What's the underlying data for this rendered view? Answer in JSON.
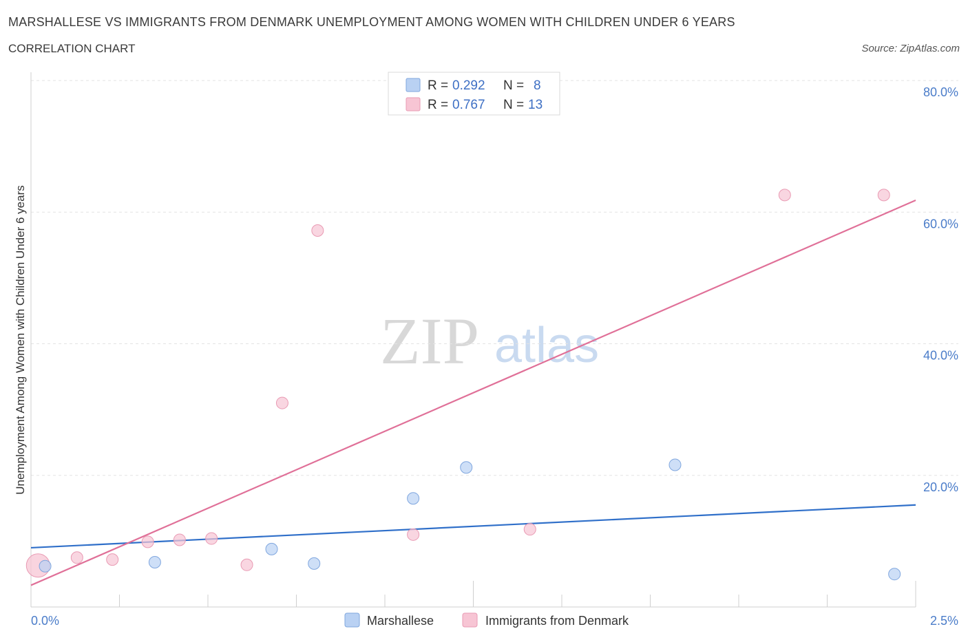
{
  "header": {
    "title": "MARSHALLESE VS IMMIGRANTS FROM DENMARK UNEMPLOYMENT AMONG WOMEN WITH CHILDREN UNDER 6 YEARS",
    "subtitle": "CORRELATION CHART",
    "source": "Source: ZipAtlas.com"
  },
  "watermark": {
    "zip": "ZIP",
    "atlas": "atlas"
  },
  "legend": {
    "series1": {
      "r_label": "R =",
      "r_value": "0.292",
      "n_label": "N =",
      "n_value": "8"
    },
    "series2": {
      "r_label": "R =",
      "r_value": "0.767",
      "n_label": "N =",
      "n_value": "13"
    }
  },
  "chart_data": {
    "type": "scatter",
    "title": "MARSHALLESE VS IMMIGRANTS FROM DENMARK UNEMPLOYMENT AMONG WOMEN WITH CHILDREN UNDER 6 YEARS",
    "xlabel": "",
    "ylabel": "Unemployment Among Women with Children Under 6 years",
    "xlim": [
      0,
      2.5
    ],
    "ylim": [
      0,
      80
    ],
    "x_tick_labels": [
      "0.0%",
      "2.5%"
    ],
    "y_ticks": [
      20,
      40,
      60,
      80
    ],
    "y_tick_labels": [
      "20.0%",
      "40.0%",
      "60.0%",
      "80.0%"
    ],
    "colors": {
      "marshallese_fill": "#b9d1f3",
      "marshallese_stroke": "#7fa6de",
      "marshallese_line": "#2f6fc9",
      "denmark_fill": "#f7c5d4",
      "denmark_stroke": "#e99ab3",
      "denmark_line": "#e07098"
    },
    "series": [
      {
        "name": "Marshallese",
        "points": [
          {
            "x": 0.04,
            "y": 6.2
          },
          {
            "x": 0.35,
            "y": 6.8
          },
          {
            "x": 0.68,
            "y": 8.8
          },
          {
            "x": 0.8,
            "y": 6.6
          },
          {
            "x": 1.08,
            "y": 16.5
          },
          {
            "x": 1.23,
            "y": 21.2
          },
          {
            "x": 1.82,
            "y": 21.6
          },
          {
            "x": 2.44,
            "y": 5.0
          }
        ],
        "trend": {
          "x0": 0.0,
          "y0": 9.0,
          "x1": 2.5,
          "y1": 15.5
        }
      },
      {
        "name": "Immigrants from Denmark",
        "points": [
          {
            "x": 0.02,
            "y": 6.3,
            "large": true
          },
          {
            "x": 0.13,
            "y": 7.5
          },
          {
            "x": 0.23,
            "y": 7.2
          },
          {
            "x": 0.33,
            "y": 9.9
          },
          {
            "x": 0.42,
            "y": 10.2
          },
          {
            "x": 0.51,
            "y": 10.4
          },
          {
            "x": 0.61,
            "y": 6.4
          },
          {
            "x": 0.71,
            "y": 31.0
          },
          {
            "x": 0.81,
            "y": 57.2
          },
          {
            "x": 1.08,
            "y": 11.0
          },
          {
            "x": 1.41,
            "y": 11.8
          },
          {
            "x": 2.13,
            "y": 62.6
          },
          {
            "x": 2.41,
            "y": 62.6
          }
        ],
        "trend": {
          "x0": 0.0,
          "y0": 3.3,
          "x1": 2.5,
          "y1": 61.8
        }
      }
    ],
    "legend_labels": [
      "Marshallese",
      "Immigrants from Denmark"
    ]
  }
}
